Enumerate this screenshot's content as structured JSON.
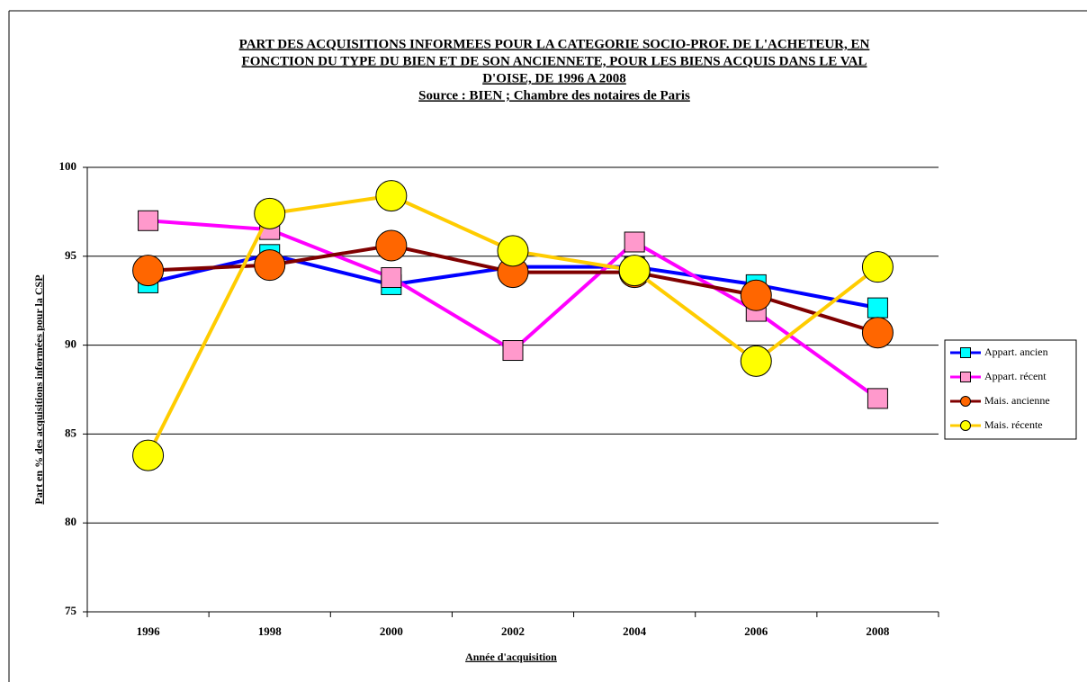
{
  "chart_data": {
    "type": "line",
    "title": [
      "PART DES ACQUISITIONS INFORMEES POUR LA CATEGORIE SOCIO-PROF. DE L'ACHETEUR, EN",
      "FONCTION DU TYPE DU BIEN ET DE SON ANCIENNETE, POUR LES BIENS ACQUIS DANS LE VAL",
      "D'OISE, DE 1996 A 2008"
    ],
    "subtitle": "Source : BIEN ; Chambre des notaires de Paris",
    "x_label": "Année d'acquisition",
    "y_label": "Part en % des acquisitions informées pour la CSP",
    "categories": [
      "1996",
      "1998",
      "2000",
      "2002",
      "2004",
      "2006",
      "2008"
    ],
    "series": [
      {
        "name": "Appart. ancien",
        "color": "#0000ff",
        "marker": "square",
        "marker_color": "#00ffff",
        "values": [
          93.5,
          95.1,
          93.4,
          94.4,
          94.4,
          93.4,
          92.1
        ]
      },
      {
        "name": "Appart. récent",
        "color": "#ff00ff",
        "marker": "square",
        "marker_color": "#ff99cc",
        "values": [
          97.0,
          96.5,
          93.8,
          89.7,
          95.8,
          91.9,
          87.0
        ]
      },
      {
        "name": "Mais. ancienne",
        "color": "#800000",
        "marker": "circle",
        "marker_color": "#ff6600",
        "values": [
          94.2,
          94.5,
          95.6,
          94.1,
          94.1,
          92.8,
          90.7
        ]
      },
      {
        "name": "Mais. récente",
        "color": "#ffcc00",
        "marker": "circle",
        "marker_color": "#ffff00",
        "values": [
          83.8,
          97.4,
          98.4,
          95.3,
          94.2,
          89.1,
          94.4
        ]
      }
    ],
    "ylim": [
      75,
      100
    ],
    "yticks": [
      75,
      80,
      85,
      90,
      95,
      100
    ],
    "grid": true,
    "legend": "right"
  }
}
